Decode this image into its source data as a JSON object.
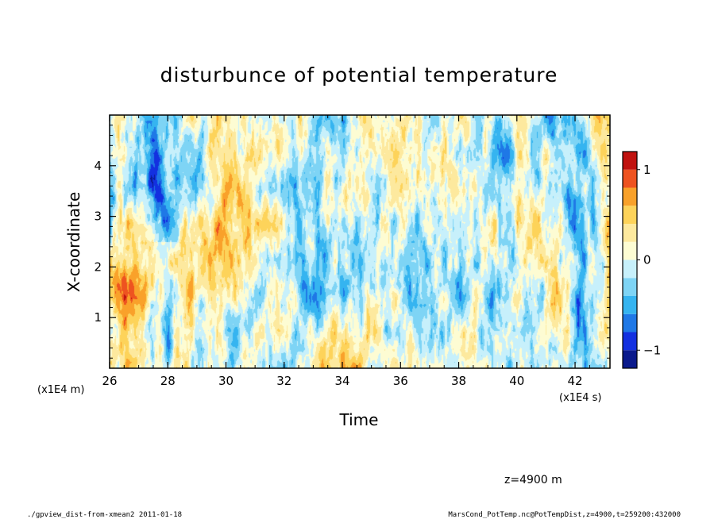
{
  "chart_data": {
    "type": "heatmap",
    "title": "disturbunce of potential temperature",
    "xlabel": "Time",
    "ylabel": "X-coordinate",
    "x_unit": "(x1E4 s)",
    "y_unit": "(x1E4 m)",
    "xlim": [
      26,
      43.2
    ],
    "ylim": [
      0,
      5
    ],
    "x_ticks": [
      26,
      28,
      30,
      32,
      34,
      36,
      38,
      40,
      42
    ],
    "y_ticks": [
      1,
      2,
      3,
      4
    ],
    "colorbar": {
      "levels": [
        -1.2,
        -1.0,
        -0.8,
        -0.6,
        -0.4,
        -0.2,
        0.0,
        0.2,
        0.4,
        0.6,
        0.8,
        1.0,
        1.2
      ],
      "colors": [
        "#0b1a8c",
        "#1330e0",
        "#1f78e6",
        "#35b4f0",
        "#7ed4f5",
        "#c7f0fb",
        "#fdfcd3",
        "#fde99e",
        "#fdd35a",
        "#f9a12a",
        "#ee5320",
        "#c0120f"
      ],
      "tick_labels": [
        "1",
        "0",
        "−1"
      ],
      "tick_values": [
        1,
        0,
        -1
      ]
    }
  },
  "annotation": {
    "z_label": "z=4900  m"
  },
  "footer": {
    "left": "./gpview_dist-from-xmean2  2011-01-18",
    "right": "MarsCond_PotTemp.nc@PotTempDist,z=4900,t=259200:432000"
  }
}
